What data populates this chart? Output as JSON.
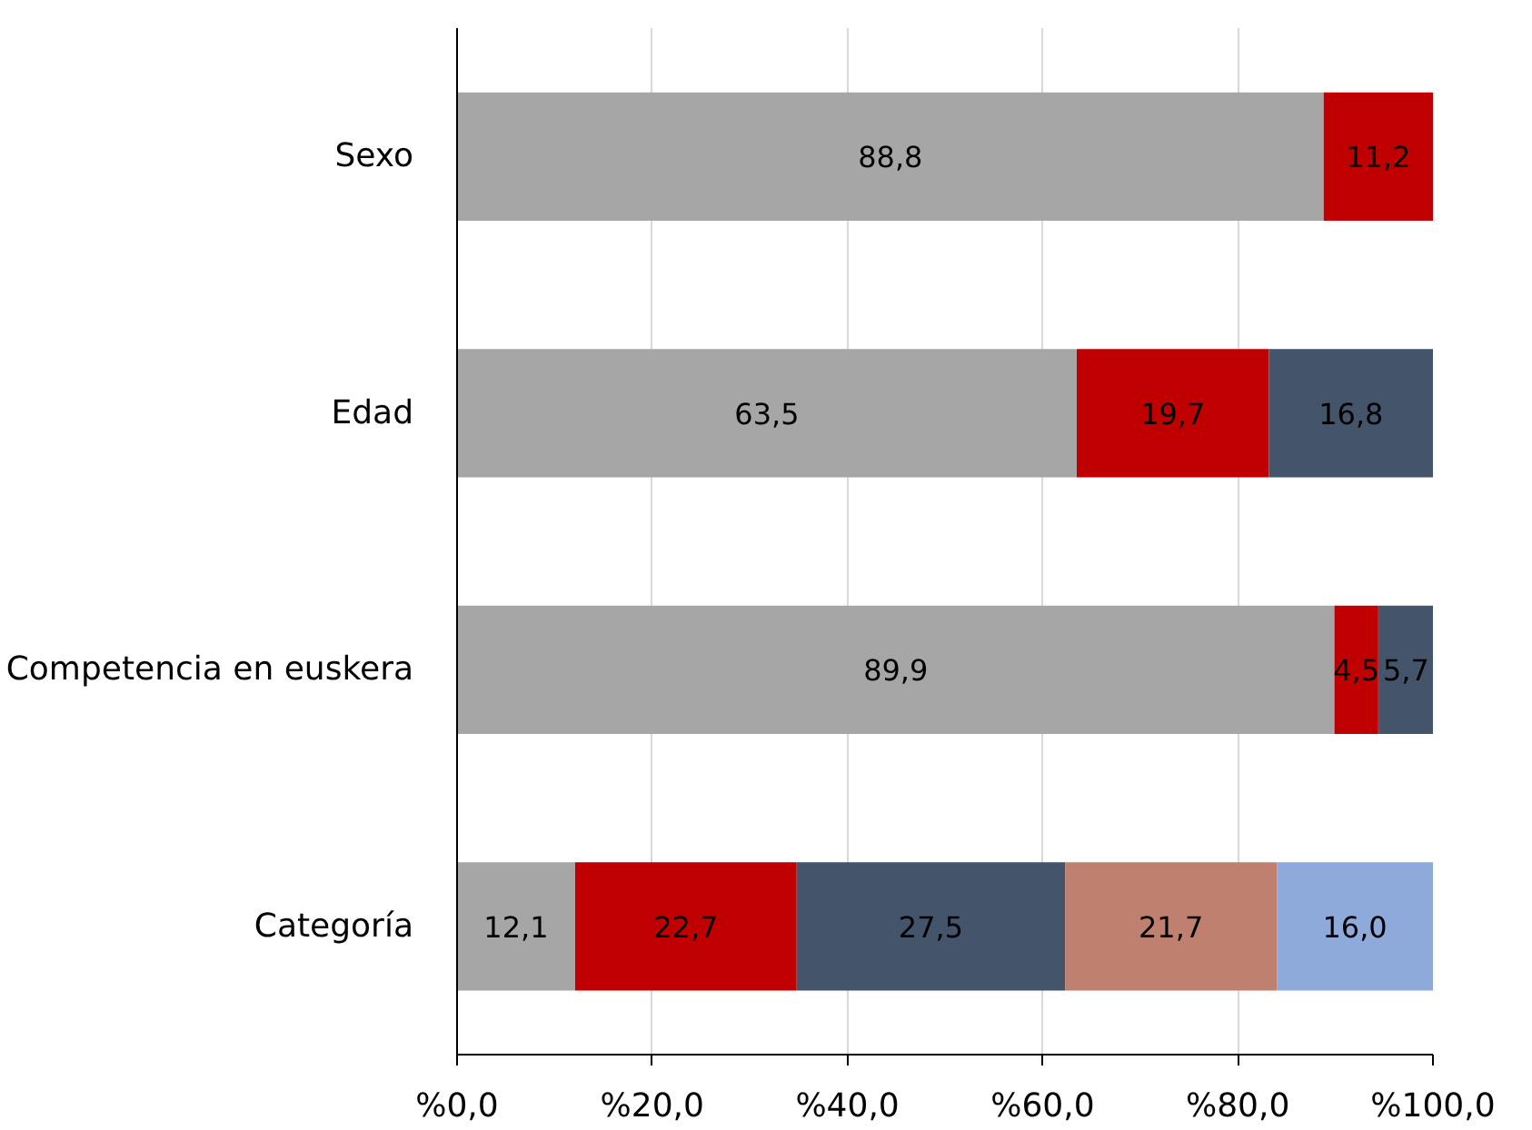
{
  "chart_data": {
    "type": "bar",
    "orientation": "horizontal",
    "stacked": true,
    "categories": [
      "Sexo",
      "Edad",
      "Competencia en euskera",
      "Categoría"
    ],
    "series": [
      {
        "color": "#a6a6a6",
        "values": [
          88.8,
          63.5,
          89.9,
          12.1
        ],
        "value_labels": [
          "88,8",
          "63,5",
          "89,9",
          "12,1"
        ]
      },
      {
        "color": "#c00000",
        "values": [
          11.2,
          19.7,
          4.5,
          22.7
        ],
        "value_labels": [
          "11,2",
          "19,7",
          "4,5",
          "22,7"
        ]
      },
      {
        "color": "#44546a",
        "values": [
          null,
          16.8,
          5.7,
          27.5
        ],
        "value_labels": [
          null,
          "16,8",
          "5,7",
          "27,5"
        ]
      },
      {
        "color": "#c0806f",
        "values": [
          null,
          null,
          null,
          21.7
        ],
        "value_labels": [
          null,
          null,
          null,
          "21,7"
        ]
      },
      {
        "color": "#8eaadb",
        "values": [
          null,
          null,
          null,
          16.0
        ],
        "value_labels": [
          null,
          null,
          null,
          "16,0"
        ]
      }
    ],
    "xlim": [
      0,
      100
    ],
    "xticks": [
      {
        "value": 0,
        "label": "%0,0"
      },
      {
        "value": 20,
        "label": "%20,0"
      },
      {
        "value": 40,
        "label": "%40,0"
      },
      {
        "value": 60,
        "label": "%60,0"
      },
      {
        "value": 80,
        "label": "%80,0"
      },
      {
        "value": 100,
        "label": "%100,0"
      }
    ],
    "grid": "x"
  }
}
